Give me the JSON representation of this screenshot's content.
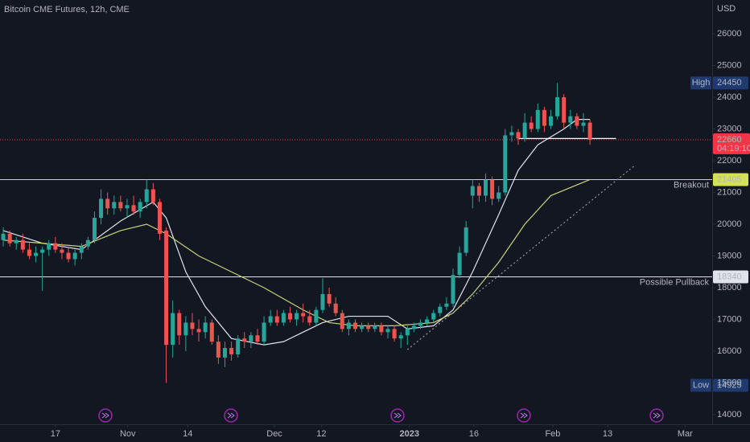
{
  "chart_data": {
    "type": "candlestick",
    "title": "Bitcoin CME Futures, 12h, CME",
    "currency": "USD",
    "up_color": "#26a69a",
    "down_color": "#ef5350",
    "xlim": [
      -0.5,
      108.75
    ],
    "ylim": [
      13696,
      27063
    ],
    "yticks": [
      14000,
      15000,
      16000,
      17000,
      18000,
      19000,
      20000,
      21000,
      22000,
      23000,
      24000,
      25000,
      26000
    ],
    "xticks": [
      {
        "value": 8,
        "label": "17"
      },
      {
        "value": 19.1,
        "label": "Nov"
      },
      {
        "value": 28.3,
        "label": "14"
      },
      {
        "value": 41.6,
        "label": "Dec"
      },
      {
        "value": 48.8,
        "label": "12"
      },
      {
        "value": 62.3,
        "label": "2023"
      },
      {
        "value": 72.2,
        "label": "16"
      },
      {
        "value": 84.3,
        "label": "Feb"
      },
      {
        "value": 92.7,
        "label": "13"
      },
      {
        "value": 104.6,
        "label": "Mar"
      }
    ],
    "ohlc": [
      [
        19500,
        19900,
        19300,
        19700
      ],
      [
        19700,
        19800,
        19300,
        19400
      ],
      [
        19400,
        19600,
        19200,
        19500
      ],
      [
        19500,
        19700,
        19100,
        19200
      ],
      [
        19200,
        19400,
        18900,
        19000
      ],
      [
        19000,
        19300,
        18800,
        19100
      ],
      [
        19100,
        19300,
        17900,
        19200
      ],
      [
        19200,
        19500,
        19000,
        19400
      ],
      [
        19400,
        19600,
        19100,
        19200
      ],
      [
        19200,
        19400,
        18900,
        19100
      ],
      [
        19100,
        19300,
        18800,
        18900
      ],
      [
        18900,
        19200,
        18700,
        19100
      ],
      [
        19100,
        19400,
        18900,
        19300
      ],
      [
        19300,
        19600,
        19200,
        19500
      ],
      [
        19500,
        20400,
        19400,
        20200
      ],
      [
        20200,
        21100,
        20000,
        20800
      ],
      [
        20800,
        21000,
        20300,
        20500
      ],
      [
        20500,
        20900,
        20300,
        20700
      ],
      [
        20700,
        20900,
        20400,
        20500
      ],
      [
        20500,
        20800,
        20200,
        20600
      ],
      [
        20600,
        20900,
        20300,
        20400
      ],
      [
        20400,
        20800,
        20200,
        20700
      ],
      [
        20700,
        21400,
        20500,
        21100
      ],
      [
        21100,
        21300,
        20600,
        20700
      ],
      [
        20700,
        20800,
        19500,
        19700
      ],
      [
        19800,
        19900,
        15000,
        16200
      ],
      [
        16200,
        17600,
        15800,
        17200
      ],
      [
        17200,
        17300,
        16200,
        16500
      ],
      [
        16500,
        17100,
        16000,
        16900
      ],
      [
        16900,
        17200,
        16500,
        16700
      ],
      [
        16700,
        17000,
        16300,
        16600
      ],
      [
        16600,
        17100,
        16400,
        16900
      ],
      [
        16900,
        17000,
        16200,
        16300
      ],
      [
        16300,
        16500,
        15600,
        15800
      ],
      [
        15800,
        16300,
        15500,
        16100
      ],
      [
        16100,
        16300,
        15700,
        15900
      ],
      [
        15900,
        16500,
        15800,
        16400
      ],
      [
        16400,
        16600,
        16100,
        16300
      ],
      [
        16300,
        16600,
        16100,
        16500
      ],
      [
        16500,
        16700,
        16200,
        16300
      ],
      [
        16300,
        17100,
        16200,
        16900
      ],
      [
        16900,
        17300,
        16800,
        17100
      ],
      [
        17100,
        17300,
        16800,
        16900
      ],
      [
        16900,
        17300,
        16800,
        17200
      ],
      [
        17200,
        17400,
        16900,
        17000
      ],
      [
        17000,
        17300,
        16800,
        17200
      ],
      [
        17200,
        17500,
        16900,
        17100
      ],
      [
        17100,
        17300,
        16800,
        16900
      ],
      [
        16900,
        17400,
        16800,
        17300
      ],
      [
        17300,
        18300,
        17200,
        17800
      ],
      [
        17800,
        18000,
        17400,
        17500
      ],
      [
        17500,
        17700,
        17100,
        17200
      ],
      [
        17200,
        17300,
        16600,
        16700
      ],
      [
        16700,
        17000,
        16500,
        16900
      ],
      [
        16900,
        17000,
        16600,
        16700
      ],
      [
        16700,
        16900,
        16600,
        16800
      ],
      [
        16800,
        16900,
        16600,
        16700
      ],
      [
        16700,
        16900,
        16600,
        16800
      ],
      [
        16800,
        16900,
        16500,
        16600
      ],
      [
        16600,
        16800,
        16400,
        16700
      ],
      [
        16700,
        16800,
        16300,
        16400
      ],
      [
        16400,
        16600,
        16100,
        16500
      ],
      [
        16500,
        16800,
        16200,
        16700
      ],
      [
        16700,
        16900,
        16600,
        16800
      ],
      [
        16800,
        17000,
        16700,
        16900
      ],
      [
        16900,
        17100,
        16800,
        17000
      ],
      [
        17000,
        17300,
        16900,
        17200
      ],
      [
        17200,
        17500,
        17100,
        17400
      ],
      [
        17400,
        17700,
        17300,
        17500
      ],
      [
        17500,
        18600,
        17400,
        18400
      ],
      [
        18400,
        19300,
        18300,
        19100
      ],
      [
        19100,
        20100,
        19000,
        19900
      ],
      [
        20900,
        21400,
        20500,
        21200
      ],
      [
        21200,
        21300,
        20700,
        20900
      ],
      [
        20900,
        21600,
        20700,
        21400
      ],
      [
        21400,
        21500,
        20600,
        20800
      ],
      [
        20800,
        21200,
        20700,
        21000
      ],
      [
        21000,
        23000,
        20900,
        22800
      ],
      [
        22800,
        23100,
        22600,
        22900
      ],
      [
        22900,
        23000,
        22500,
        22700
      ],
      [
        22700,
        23500,
        22600,
        23200
      ],
      [
        23200,
        23400,
        22900,
        23000
      ],
      [
        23000,
        23800,
        22900,
        23600
      ],
      [
        23600,
        23700,
        22900,
        23100
      ],
      [
        23100,
        23600,
        23000,
        23400
      ],
      [
        23400,
        24450,
        23300,
        24000
      ],
      [
        24000,
        24100,
        23000,
        23200
      ],
      [
        23200,
        23600,
        23000,
        23400
      ],
      [
        23400,
        23500,
        23000,
        23100
      ],
      [
        23100,
        23500,
        22900,
        23200
      ],
      [
        23200,
        23300,
        22500,
        22660
      ]
    ],
    "lines": [
      {
        "color": "#e0e3eb",
        "dash": false,
        "x": [
          0,
          6,
          12,
          18,
          23,
          25,
          28,
          31,
          35,
          40,
          43,
          49,
          53,
          59,
          62,
          66,
          69,
          72,
          76,
          79,
          82,
          86,
          88,
          90
        ],
        "values": [
          19800,
          19400,
          19200,
          20100,
          20700,
          20200,
          18500,
          17400,
          16400,
          16200,
          16300,
          16900,
          17100,
          17100,
          16700,
          16800,
          17300,
          18500,
          20300,
          21700,
          22500,
          23000,
          23300,
          23300
        ]
      },
      {
        "color": "#c8d37a",
        "dash": false,
        "x": [
          0,
          12,
          18,
          22,
          25,
          30,
          40,
          46,
          50,
          54,
          60,
          66,
          69,
          72,
          76,
          80,
          84,
          90
        ],
        "values": [
          19500,
          19300,
          19800,
          20000,
          19700,
          19000,
          18000,
          17300,
          16900,
          16800,
          16800,
          16900,
          17200,
          17800,
          18800,
          20000,
          20900,
          21405
        ]
      },
      {
        "color": "#9598a1",
        "dash": true,
        "x": [
          62,
          97
        ],
        "values": [
          16050,
          21870
        ]
      },
      {
        "color": "#ffffff",
        "dash": false,
        "x": [
          79,
          94
        ],
        "values": [
          22700,
          22700
        ]
      }
    ],
    "levels": [
      {
        "value": 21405,
        "label": "Breakout",
        "color": "#d4e157",
        "text_color": "#d4e157",
        "tag_text": "#131722"
      },
      {
        "value": 18340,
        "label": "Possible Pullback",
        "color": "#e0e3eb",
        "text_color": "#ffffff",
        "tag_text": "#131722"
      }
    ],
    "current": {
      "value": 22660,
      "countdown": "04:19:10",
      "color": "#f23645"
    },
    "high": {
      "label": "High",
      "value": 24450
    },
    "low": {
      "label": "Low",
      "value": 14925
    }
  }
}
